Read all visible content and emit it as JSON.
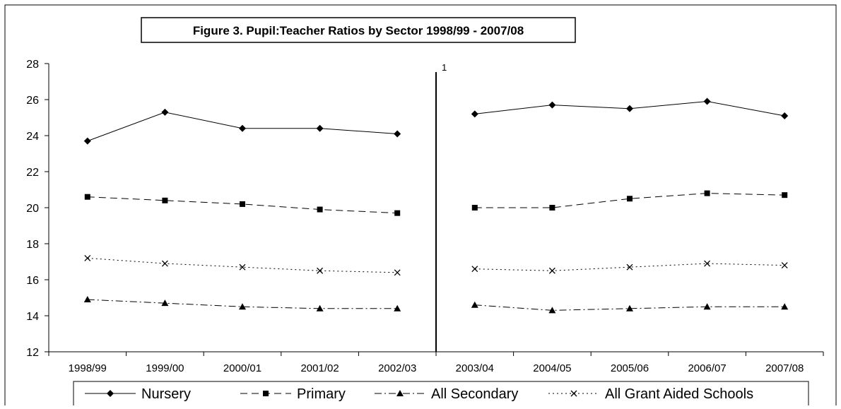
{
  "chart_data": {
    "type": "line",
    "title": "Figure 3. Pupil:Teacher Ratios by Sector 1998/99 - 2007/08",
    "xlabel": "",
    "ylabel": "",
    "categories": [
      "1998/99",
      "1999/00",
      "2000/01",
      "2001/02",
      "2002/03",
      "2003/04",
      "2004/05",
      "2005/06",
      "2006/07",
      "2007/08"
    ],
    "ylim": [
      12,
      28
    ],
    "yticks": [
      12,
      14,
      16,
      18,
      20,
      22,
      24,
      26,
      28
    ],
    "break_after_index": 4,
    "break_label": "1",
    "legend_position": "bottom",
    "series": [
      {
        "name": "Nursery",
        "marker": "diamond",
        "dash": "solid",
        "values": [
          23.7,
          25.3,
          24.4,
          24.4,
          24.1,
          25.2,
          25.7,
          25.5,
          25.9,
          25.1
        ]
      },
      {
        "name": "Primary",
        "marker": "square",
        "dash": "dashed",
        "values": [
          20.6,
          20.4,
          20.2,
          19.9,
          19.7,
          20.0,
          20.0,
          20.5,
          20.8,
          20.7
        ]
      },
      {
        "name": "All Secondary",
        "marker": "triangle",
        "dash": "dashdot",
        "values": [
          14.9,
          14.7,
          14.5,
          14.4,
          14.4,
          14.6,
          14.3,
          14.4,
          14.5,
          14.5
        ]
      },
      {
        "name": "All Grant Aided Schools",
        "marker": "x",
        "dash": "dotted",
        "values": [
          17.2,
          16.9,
          16.7,
          16.5,
          16.4,
          16.6,
          16.5,
          16.7,
          16.9,
          16.8
        ]
      }
    ]
  }
}
